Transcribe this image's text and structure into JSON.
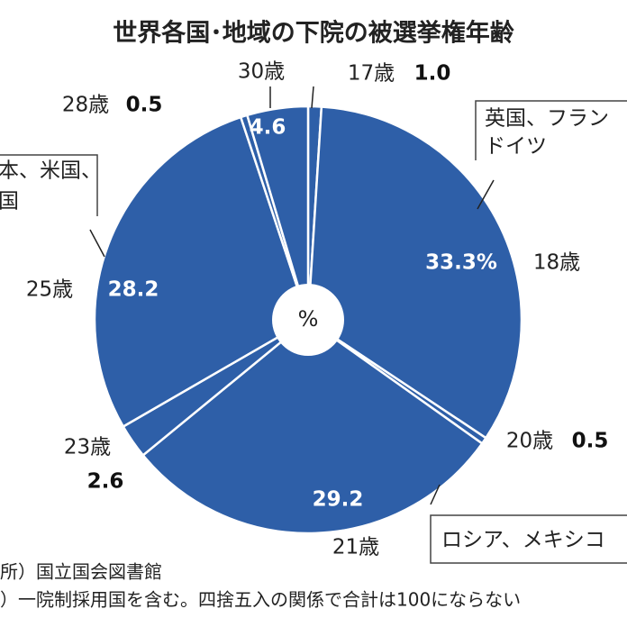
{
  "chart_data": {
    "type": "pie",
    "title": "世界各国･地域の下院の被選挙権年齢",
    "center_label": "%",
    "categories": [
      "17歳",
      "18歳",
      "20歳",
      "21歳",
      "23歳",
      "25歳",
      "28歳",
      "30歳"
    ],
    "values": [
      1.0,
      33.3,
      0.5,
      29.2,
      2.6,
      28.2,
      0.5,
      4.6
    ],
    "value_labels": [
      "1.0",
      "33.3%",
      "0.5",
      "29.2",
      "2.6",
      "28.2",
      "0.5",
      "4.6"
    ],
    "color": "#2e5fa8",
    "annotations": [
      {
        "lines": [
          "英国、フラン",
          "ドイツ"
        ]
      },
      {
        "lines": [
          "本、米国、",
          "国"
        ]
      },
      {
        "lines": [
          "ロシア、メキシコ"
        ]
      }
    ],
    "notes": [
      "所）国立国会図書館",
      "）一院制採用国を含む。四捨五入の関係で合計は100にならない"
    ]
  }
}
